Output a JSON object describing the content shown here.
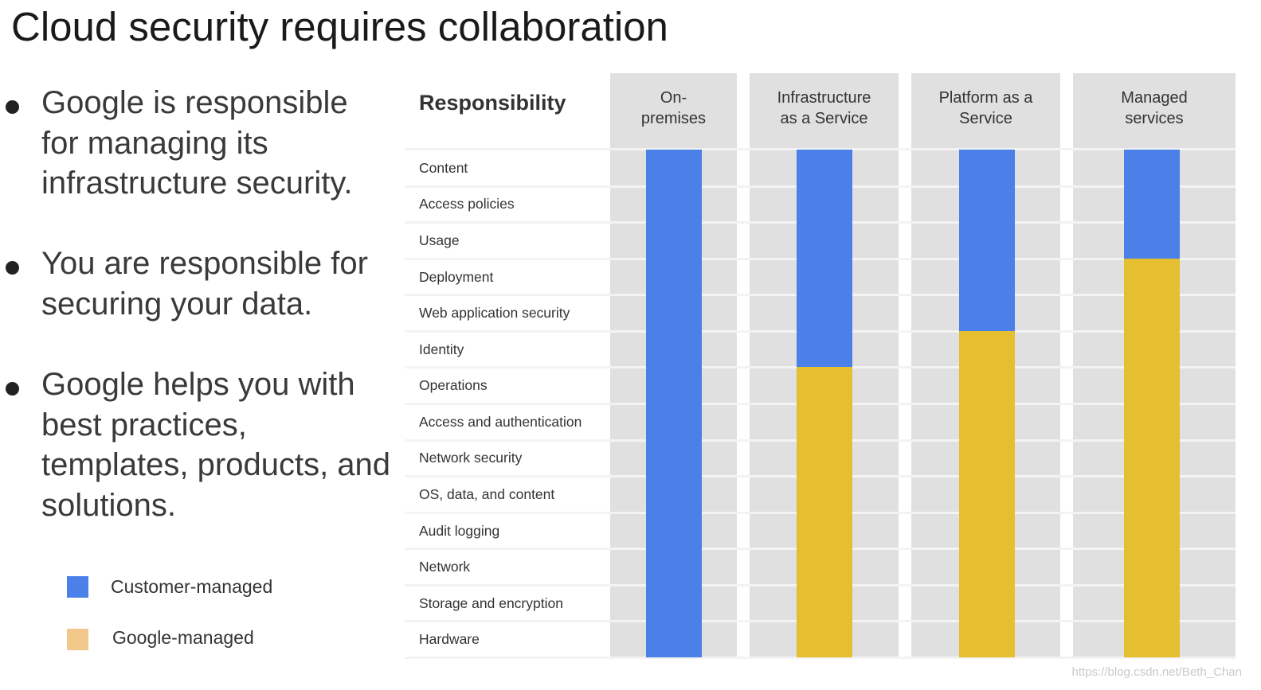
{
  "title": "Cloud security requires collaboration",
  "bullets": [
    "Google is responsible for managing its infrastructure security.",
    "You are responsible for securing your data.",
    "Google helps you with best practices, templates, products, and solutions."
  ],
  "legend": {
    "customer": {
      "label": "Customer-managed",
      "color": "#4a80e8"
    },
    "google": {
      "label": "Google-managed",
      "color": "#f2c98a"
    }
  },
  "table": {
    "responsibility_header": "Responsibility",
    "columns": [
      {
        "line1": "On-",
        "line2": "premises"
      },
      {
        "line1": "Infrastructure",
        "line2": "as a Service"
      },
      {
        "line1": "Platform as a",
        "line2": "Service"
      },
      {
        "line1": "Managed",
        "line2": "services"
      }
    ],
    "rows": [
      "Content",
      "Access policies",
      "Usage",
      "Deployment",
      "Web application security",
      "Identity",
      "Operations",
      "Access and authentication",
      "Network security",
      "OS, data, and content",
      "Audit logging",
      "Network",
      "Storage and encryption",
      "Hardware"
    ],
    "customer_managed_rows": [
      14,
      6,
      5,
      3
    ],
    "colors": {
      "customer": "#4a80e8",
      "google": "#e6bf31"
    }
  },
  "watermark": "https://blog.csdn.net/Beth_Chan"
}
